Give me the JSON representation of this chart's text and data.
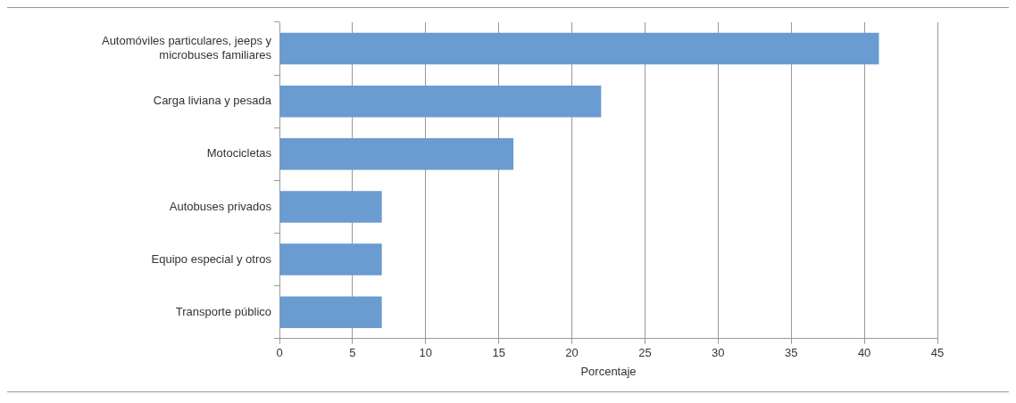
{
  "chart_data": {
    "type": "bar",
    "orientation": "horizontal",
    "xlabel": "Porcentaje",
    "categories": [
      "Automóviles particulares, jeeps y microbuses familiares",
      "Carga liviana y pesada",
      "Motocicletas",
      "Autobuses privados",
      "Equipo especial y otros",
      "Transporte público"
    ],
    "values": [
      41,
      22,
      16,
      7,
      7,
      7
    ],
    "color": "#6a9bd1",
    "xlim": [
      0,
      45
    ],
    "xticks": [
      0,
      5,
      10,
      15,
      20,
      25,
      30,
      35,
      40,
      45
    ],
    "grid": "x",
    "legend": false
  }
}
